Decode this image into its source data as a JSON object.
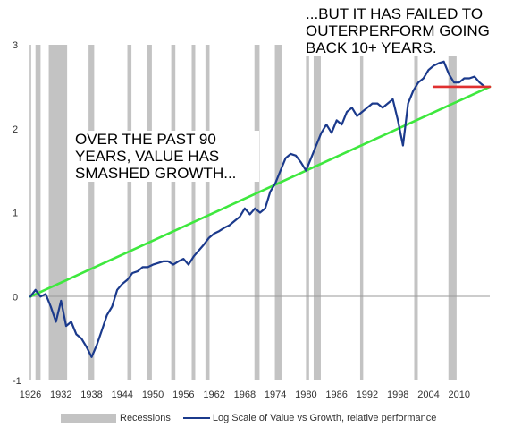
{
  "annotations": {
    "left": "OVER THE PAST 90\nYEARS, VALUE HAS\nSMASHED GROWTH...",
    "right": "...BUT IT HAS FAILED TO\nOUTERPERFORM GOING\nBACK 10+ YEARS."
  },
  "legend": {
    "recessions": "Recessions",
    "series": "Log Scale of Value vs Growth, relative performance"
  },
  "colors": {
    "series": "#1b3a8c",
    "recession": "#c3c3c3",
    "trend": "#3ee83e",
    "flat": "#e03030"
  },
  "chart_data": {
    "type": "line",
    "title": "",
    "xlabel": "",
    "ylabel": "",
    "xlim": [
      1926,
      2016
    ],
    "ylim": [
      -1,
      3
    ],
    "x_ticks": [
      "1926",
      "1932",
      "1938",
      "1944",
      "1950",
      "1956",
      "1962",
      "1968",
      "1974",
      "1980",
      "1986",
      "1992",
      "1998",
      "2004",
      "2010"
    ],
    "y_ticks": [
      "-1",
      "0",
      "1",
      "2",
      "3"
    ],
    "grid": false,
    "legend_position": "bottom",
    "recessions": [
      [
        1927.0,
        1928.0
      ],
      [
        1929.6,
        1933.2
      ],
      [
        1937.4,
        1938.5
      ],
      [
        1945.0,
        1945.8
      ],
      [
        1948.9,
        1949.8
      ],
      [
        1953.6,
        1954.4
      ],
      [
        1957.6,
        1958.3
      ],
      [
        1960.3,
        1961.1
      ],
      [
        1969.9,
        1970.9
      ],
      [
        1973.9,
        1975.2
      ],
      [
        1980.0,
        1980.6
      ],
      [
        1981.5,
        1982.9
      ],
      [
        1990.6,
        1991.2
      ],
      [
        2001.2,
        2001.9
      ],
      [
        2007.9,
        2009.5
      ]
    ],
    "series": [
      {
        "name": "Log Scale of Value vs Growth, relative performance",
        "x": [
          1926,
          1927,
          1928,
          1929,
          1930,
          1931,
          1932,
          1933,
          1934,
          1935,
          1936,
          1937,
          1938,
          1939,
          1940,
          1941,
          1942,
          1943,
          1944,
          1945,
          1946,
          1947,
          1948,
          1949,
          1950,
          1951,
          1952,
          1953,
          1954,
          1955,
          1956,
          1957,
          1958,
          1959,
          1960,
          1961,
          1962,
          1963,
          1964,
          1965,
          1966,
          1967,
          1968,
          1969,
          1970,
          1971,
          1972,
          1973,
          1974,
          1975,
          1976,
          1977,
          1978,
          1979,
          1980,
          1981,
          1982,
          1983,
          1984,
          1985,
          1986,
          1987,
          1988,
          1989,
          1990,
          1991,
          1992,
          1993,
          1994,
          1995,
          1996,
          1997,
          1998,
          1999,
          2000,
          2001,
          2002,
          2003,
          2004,
          2005,
          2006,
          2007,
          2008,
          2009,
          2010,
          2011,
          2012,
          2013,
          2014,
          2015
        ],
        "values": [
          0.0,
          0.08,
          0.0,
          0.03,
          -0.12,
          -0.3,
          -0.05,
          -0.35,
          -0.3,
          -0.45,
          -0.5,
          -0.6,
          -0.72,
          -0.58,
          -0.4,
          -0.22,
          -0.12,
          0.08,
          0.15,
          0.2,
          0.28,
          0.3,
          0.35,
          0.35,
          0.38,
          0.4,
          0.42,
          0.42,
          0.38,
          0.42,
          0.45,
          0.38,
          0.48,
          0.55,
          0.62,
          0.7,
          0.75,
          0.78,
          0.82,
          0.85,
          0.9,
          0.95,
          1.05,
          0.98,
          1.05,
          1.0,
          1.05,
          1.25,
          1.35,
          1.5,
          1.65,
          1.7,
          1.68,
          1.6,
          1.5,
          1.65,
          1.8,
          1.95,
          2.05,
          1.95,
          2.1,
          2.05,
          2.2,
          2.25,
          2.15,
          2.2,
          2.25,
          2.3,
          2.3,
          2.25,
          2.3,
          2.35,
          2.1,
          1.8,
          2.3,
          2.45,
          2.55,
          2.6,
          2.7,
          2.75,
          2.78,
          2.8,
          2.65,
          2.55,
          2.55,
          2.6,
          2.6,
          2.62,
          2.55,
          2.5
        ]
      },
      {
        "name": "",
        "x": [
          1926,
          2016
        ],
        "values": [
          0.0,
          2.5
        ]
      },
      {
        "name": "",
        "x": [
          2005,
          2016
        ],
        "values": [
          2.5,
          2.5
        ]
      }
    ]
  }
}
